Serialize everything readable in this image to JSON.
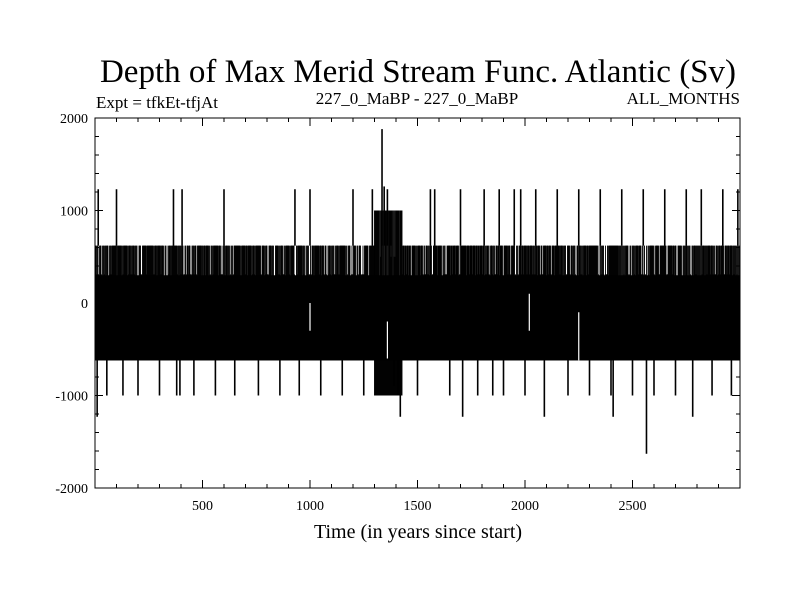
{
  "chart_data": {
    "type": "line",
    "title": "Depth of Max Merid Stream Func. Atlantic (Sv)",
    "subtitle_left": "Expt = tfkEt-tfjAt",
    "subtitle_center": "227_0_MaBP - 227_0_MaBP",
    "subtitle_right": "ALL_MONTHS",
    "xlabel": "Time (in years since start)",
    "ylabel": "",
    "xlim": [
      0,
      3000
    ],
    "ylim": [
      -2000,
      2000
    ],
    "x_ticks": [
      500,
      1000,
      1500,
      2000,
      2500
    ],
    "x_tick_labels": [
      "500",
      "1000",
      "1500",
      "2000",
      "2500"
    ],
    "y_ticks": [
      2000,
      1000,
      0,
      -1000,
      -2000
    ],
    "y_tick_labels": [
      "2000",
      "1000",
      "0",
      "-1000",
      "-2000"
    ],
    "grid": false,
    "series_style": "dense oscillating trace, black",
    "levels": [
      -1230,
      -1000,
      -620,
      0,
      620,
      1230
    ],
    "upper_band": [
      {
        "x_start": 0,
        "x_end": 1300,
        "min": -620,
        "max": 620
      },
      {
        "x_start": 1300,
        "x_end": 1430,
        "min": -1000,
        "max": 1000
      },
      {
        "x_start": 1430,
        "x_end": 1900,
        "min": -620,
        "max": 620
      },
      {
        "x_start": 1900,
        "x_end": 3000,
        "min": -620,
        "max": 620
      }
    ],
    "spikes": [
      {
        "x": 15,
        "y": 1230
      },
      {
        "x": 10,
        "y": -1230
      },
      {
        "x": 55,
        "y": -1000
      },
      {
        "x": 100,
        "y": 1230
      },
      {
        "x": 130,
        "y": -1000
      },
      {
        "x": 150,
        "y": 620
      },
      {
        "x": 200,
        "y": -1000
      },
      {
        "x": 260,
        "y": 620
      },
      {
        "x": 300,
        "y": -1000
      },
      {
        "x": 330,
        "y": 620
      },
      {
        "x": 365,
        "y": 1230
      },
      {
        "x": 380,
        "y": -1000
      },
      {
        "x": 395,
        "y": -1000
      },
      {
        "x": 405,
        "y": 1230
      },
      {
        "x": 440,
        "y": 620
      },
      {
        "x": 460,
        "y": -1000
      },
      {
        "x": 500,
        "y": 620
      },
      {
        "x": 560,
        "y": -1000
      },
      {
        "x": 600,
        "y": 1230
      },
      {
        "x": 650,
        "y": -1000
      },
      {
        "x": 700,
        "y": 620
      },
      {
        "x": 760,
        "y": -1000
      },
      {
        "x": 800,
        "y": 620
      },
      {
        "x": 860,
        "y": -1000
      },
      {
        "x": 930,
        "y": 1230
      },
      {
        "x": 950,
        "y": -1000
      },
      {
        "x": 1000,
        "y": 1230
      },
      {
        "x": 1050,
        "y": -1000
      },
      {
        "x": 1100,
        "y": 620
      },
      {
        "x": 1150,
        "y": -1000
      },
      {
        "x": 1200,
        "y": 1230
      },
      {
        "x": 1250,
        "y": -1000
      },
      {
        "x": 1290,
        "y": 1230
      },
      {
        "x": 1335,
        "y": 1880
      },
      {
        "x": 1345,
        "y": 1260
      },
      {
        "x": 1360,
        "y": 1230
      },
      {
        "x": 1375,
        "y": 1000
      },
      {
        "x": 1390,
        "y": -900
      },
      {
        "x": 1410,
        "y": -1000
      },
      {
        "x": 1420,
        "y": -1230
      },
      {
        "x": 1450,
        "y": 620
      },
      {
        "x": 1500,
        "y": -1000
      },
      {
        "x": 1560,
        "y": 1230
      },
      {
        "x": 1580,
        "y": 1230
      },
      {
        "x": 1650,
        "y": -1000
      },
      {
        "x": 1700,
        "y": 1230
      },
      {
        "x": 1710,
        "y": -1230
      },
      {
        "x": 1780,
        "y": -1000
      },
      {
        "x": 1810,
        "y": 1230
      },
      {
        "x": 1850,
        "y": -1000
      },
      {
        "x": 1880,
        "y": 1230
      },
      {
        "x": 1900,
        "y": -1000
      },
      {
        "x": 1950,
        "y": 1230
      },
      {
        "x": 1980,
        "y": 1230
      },
      {
        "x": 2000,
        "y": -1000
      },
      {
        "x": 2050,
        "y": 1230
      },
      {
        "x": 2090,
        "y": -1230
      },
      {
        "x": 2150,
        "y": 1230
      },
      {
        "x": 2200,
        "y": -1000
      },
      {
        "x": 2250,
        "y": 1230
      },
      {
        "x": 2300,
        "y": -1000
      },
      {
        "x": 2350,
        "y": 1230
      },
      {
        "x": 2400,
        "y": -1000
      },
      {
        "x": 2410,
        "y": -1230
      },
      {
        "x": 2450,
        "y": 1230
      },
      {
        "x": 2500,
        "y": -1000
      },
      {
        "x": 2550,
        "y": 1230
      },
      {
        "x": 2565,
        "y": -1630
      },
      {
        "x": 2600,
        "y": -1000
      },
      {
        "x": 2650,
        "y": 1230
      },
      {
        "x": 2700,
        "y": -1000
      },
      {
        "x": 2750,
        "y": 1230
      },
      {
        "x": 2780,
        "y": -1230
      },
      {
        "x": 2820,
        "y": 1230
      },
      {
        "x": 2870,
        "y": -1000
      },
      {
        "x": 2920,
        "y": 1230
      },
      {
        "x": 2960,
        "y": -1000
      },
      {
        "x": 2990,
        "y": 1230
      }
    ],
    "gaps": [
      {
        "x": 1000,
        "y_min": -300,
        "y_max": 0
      },
      {
        "x": 1360,
        "y_min": -600,
        "y_max": -200
      },
      {
        "x": 2250,
        "y_min": -620,
        "y_max": -100
      },
      {
        "x": 2020,
        "y_min": -300,
        "y_max": 100
      }
    ]
  }
}
